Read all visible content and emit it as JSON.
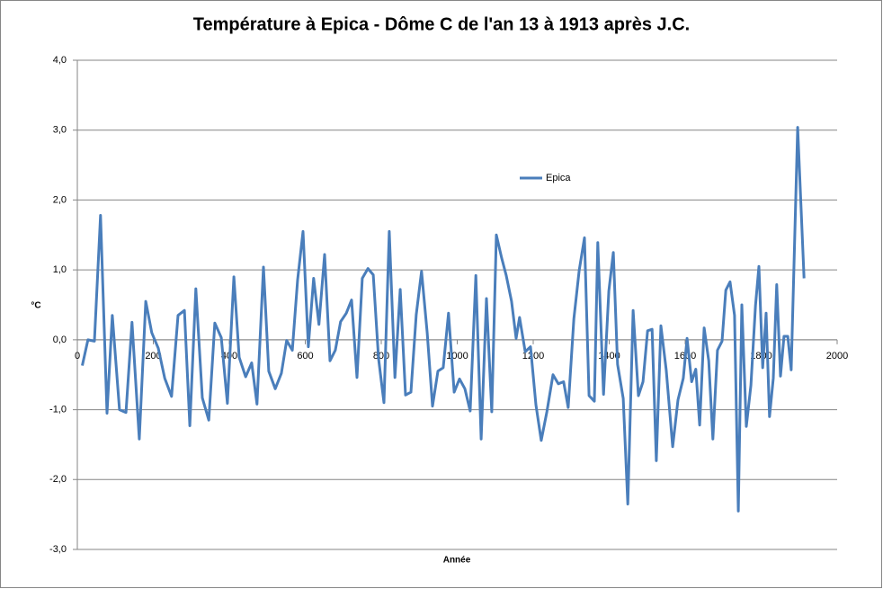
{
  "chart_data": {
    "type": "line",
    "title": "Température à Epica - Dôme C de l'an 13 à 1913 après J.C.",
    "x_label": "Année",
    "y_label": "°C",
    "x": [
      13,
      28,
      45,
      61,
      78,
      92,
      111,
      128,
      144,
      163,
      180,
      196,
      213,
      230,
      248,
      265,
      282,
      296,
      312,
      329,
      346,
      362,
      379,
      395,
      412,
      426,
      443,
      459,
      473,
      490,
      504,
      521,
      537,
      551,
      566,
      580,
      594,
      608,
      622,
      636,
      651,
      665,
      679,
      693,
      708,
      722,
      736,
      750,
      765,
      779,
      793,
      807,
      821,
      836,
      850,
      864,
      878,
      892,
      906,
      921,
      935,
      949,
      963,
      977,
      992,
      1006,
      1020,
      1034,
      1049,
      1063,
      1077,
      1091,
      1103,
      1117,
      1129,
      1143,
      1155,
      1164,
      1179,
      1193,
      1207,
      1221,
      1236,
      1252,
      1266,
      1280,
      1292,
      1307,
      1321,
      1335,
      1347,
      1361,
      1370,
      1385,
      1399,
      1411,
      1422,
      1437,
      1449,
      1463,
      1477,
      1489,
      1501,
      1513,
      1524,
      1536,
      1550,
      1567,
      1581,
      1595,
      1605,
      1617,
      1628,
      1638,
      1650,
      1662,
      1673,
      1685,
      1697,
      1707,
      1718,
      1730,
      1740,
      1749,
      1761,
      1773,
      1785,
      1794,
      1804,
      1813,
      1822,
      1832,
      1841,
      1851,
      1860,
      1870,
      1879,
      1896,
      1913
    ],
    "series": [
      {
        "name": "Epica",
        "color": "#4a7ebb",
        "values": [
          -0.37,
          0.0,
          -0.02,
          1.78,
          -1.05,
          0.35,
          -1.0,
          -1.04,
          0.25,
          -1.42,
          0.55,
          0.1,
          -0.12,
          -0.55,
          -0.81,
          0.35,
          0.42,
          -1.23,
          0.73,
          -0.83,
          -1.15,
          0.24,
          0.03,
          -0.91,
          0.9,
          -0.25,
          -0.53,
          -0.33,
          -0.92,
          1.04,
          -0.45,
          -0.7,
          -0.48,
          -0.01,
          -0.15,
          0.86,
          1.55,
          -0.1,
          0.88,
          0.22,
          1.22,
          -0.3,
          -0.15,
          0.26,
          0.38,
          0.57,
          -0.54,
          0.88,
          1.02,
          0.93,
          -0.27,
          -0.9,
          1.55,
          -0.54,
          0.72,
          -0.79,
          -0.75,
          0.36,
          0.98,
          0.1,
          -0.95,
          -0.45,
          -0.4,
          0.38,
          -0.75,
          -0.56,
          -0.7,
          -1.02,
          0.92,
          -1.42,
          0.59,
          -1.03,
          1.5,
          1.17,
          0.92,
          0.55,
          0.02,
          0.32,
          -0.17,
          -0.1,
          -0.93,
          -1.44,
          -1.03,
          -0.5,
          -0.63,
          -0.6,
          -0.97,
          0.3,
          0.99,
          1.46,
          -0.8,
          -0.88,
          1.39,
          -0.78,
          0.7,
          1.25,
          -0.35,
          -0.84,
          -2.35,
          0.42,
          -0.8,
          -0.6,
          0.13,
          0.15,
          -1.73,
          0.2,
          -0.43,
          -1.53,
          -0.86,
          -0.55,
          0.02,
          -0.6,
          -0.42,
          -1.22,
          0.17,
          -0.3,
          -1.42,
          -0.15,
          -0.02,
          0.71,
          0.83,
          0.35,
          -2.45,
          0.5,
          -1.24,
          -0.65,
          0.49,
          1.05,
          -0.4,
          0.38,
          -1.1,
          -0.55,
          0.79,
          -0.52,
          0.05,
          0.05,
          -0.43,
          3.04,
          0.88
        ]
      }
    ],
    "xlim": [
      0,
      2000
    ],
    "xticks": [
      0,
      200,
      400,
      600,
      800,
      1000,
      1200,
      1400,
      1600,
      1800,
      2000
    ],
    "ylim": [
      -3,
      4
    ],
    "yticks": [
      {
        "value": 4,
        "label": "4,0"
      },
      {
        "value": 3,
        "label": "3,0"
      },
      {
        "value": 2,
        "label": "2,0"
      },
      {
        "value": 1,
        "label": "1,0"
      },
      {
        "value": 0,
        "label": "0,0"
      },
      {
        "value": -1,
        "label": "-1,0"
      },
      {
        "value": -2,
        "label": "-2,0"
      },
      {
        "value": -3,
        "label": "-3,0"
      }
    ],
    "grid": true,
    "legend": "top"
  }
}
